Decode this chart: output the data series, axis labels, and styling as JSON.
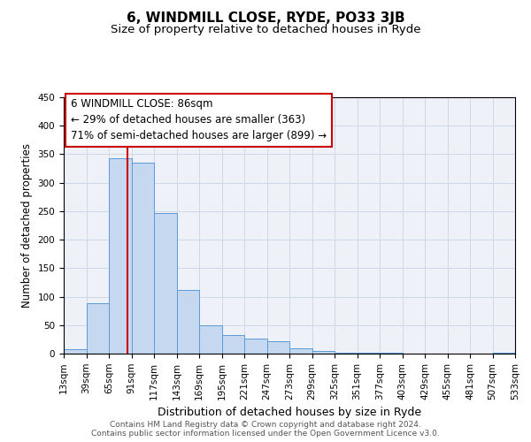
{
  "title": "6, WINDMILL CLOSE, RYDE, PO33 3JB",
  "subtitle": "Size of property relative to detached houses in Ryde",
  "xlabel": "Distribution of detached houses by size in Ryde",
  "ylabel": "Number of detached properties",
  "bin_edges": [
    13,
    39,
    65,
    91,
    117,
    143,
    169,
    195,
    221,
    247,
    273,
    299,
    325,
    351,
    377,
    403,
    429,
    455,
    481,
    507,
    533
  ],
  "bar_heights": [
    7,
    88,
    343,
    335,
    246,
    111,
    49,
    33,
    26,
    22,
    10,
    5,
    1,
    1,
    1,
    0,
    0,
    0,
    0,
    1
  ],
  "bar_color": "#c5d8f0",
  "bar_edge_color": "#5b9bd5",
  "vertical_line_x": 86,
  "vertical_line_color": "#cc0000",
  "annotation_line1": "6 WINDMILL CLOSE: 86sqm",
  "annotation_line2": "← 29% of detached houses are smaller (363)",
  "annotation_line3": "71% of semi-detached houses are larger (899) →",
  "annotation_box_color": "#cc0000",
  "ylim": [
    0,
    450
  ],
  "yticks": [
    0,
    50,
    100,
    150,
    200,
    250,
    300,
    350,
    400,
    450
  ],
  "grid_color": "#d0d8e8",
  "bg_color": "#eef2f8",
  "footer_line1": "Contains HM Land Registry data © Crown copyright and database right 2024.",
  "footer_line2": "Contains public sector information licensed under the Open Government Licence v3.0.",
  "title_fontsize": 11,
  "subtitle_fontsize": 9.5,
  "xlabel_fontsize": 9,
  "ylabel_fontsize": 8.5,
  "tick_fontsize": 7.5,
  "annotation_fontsize": 8.5,
  "footer_fontsize": 6.5
}
